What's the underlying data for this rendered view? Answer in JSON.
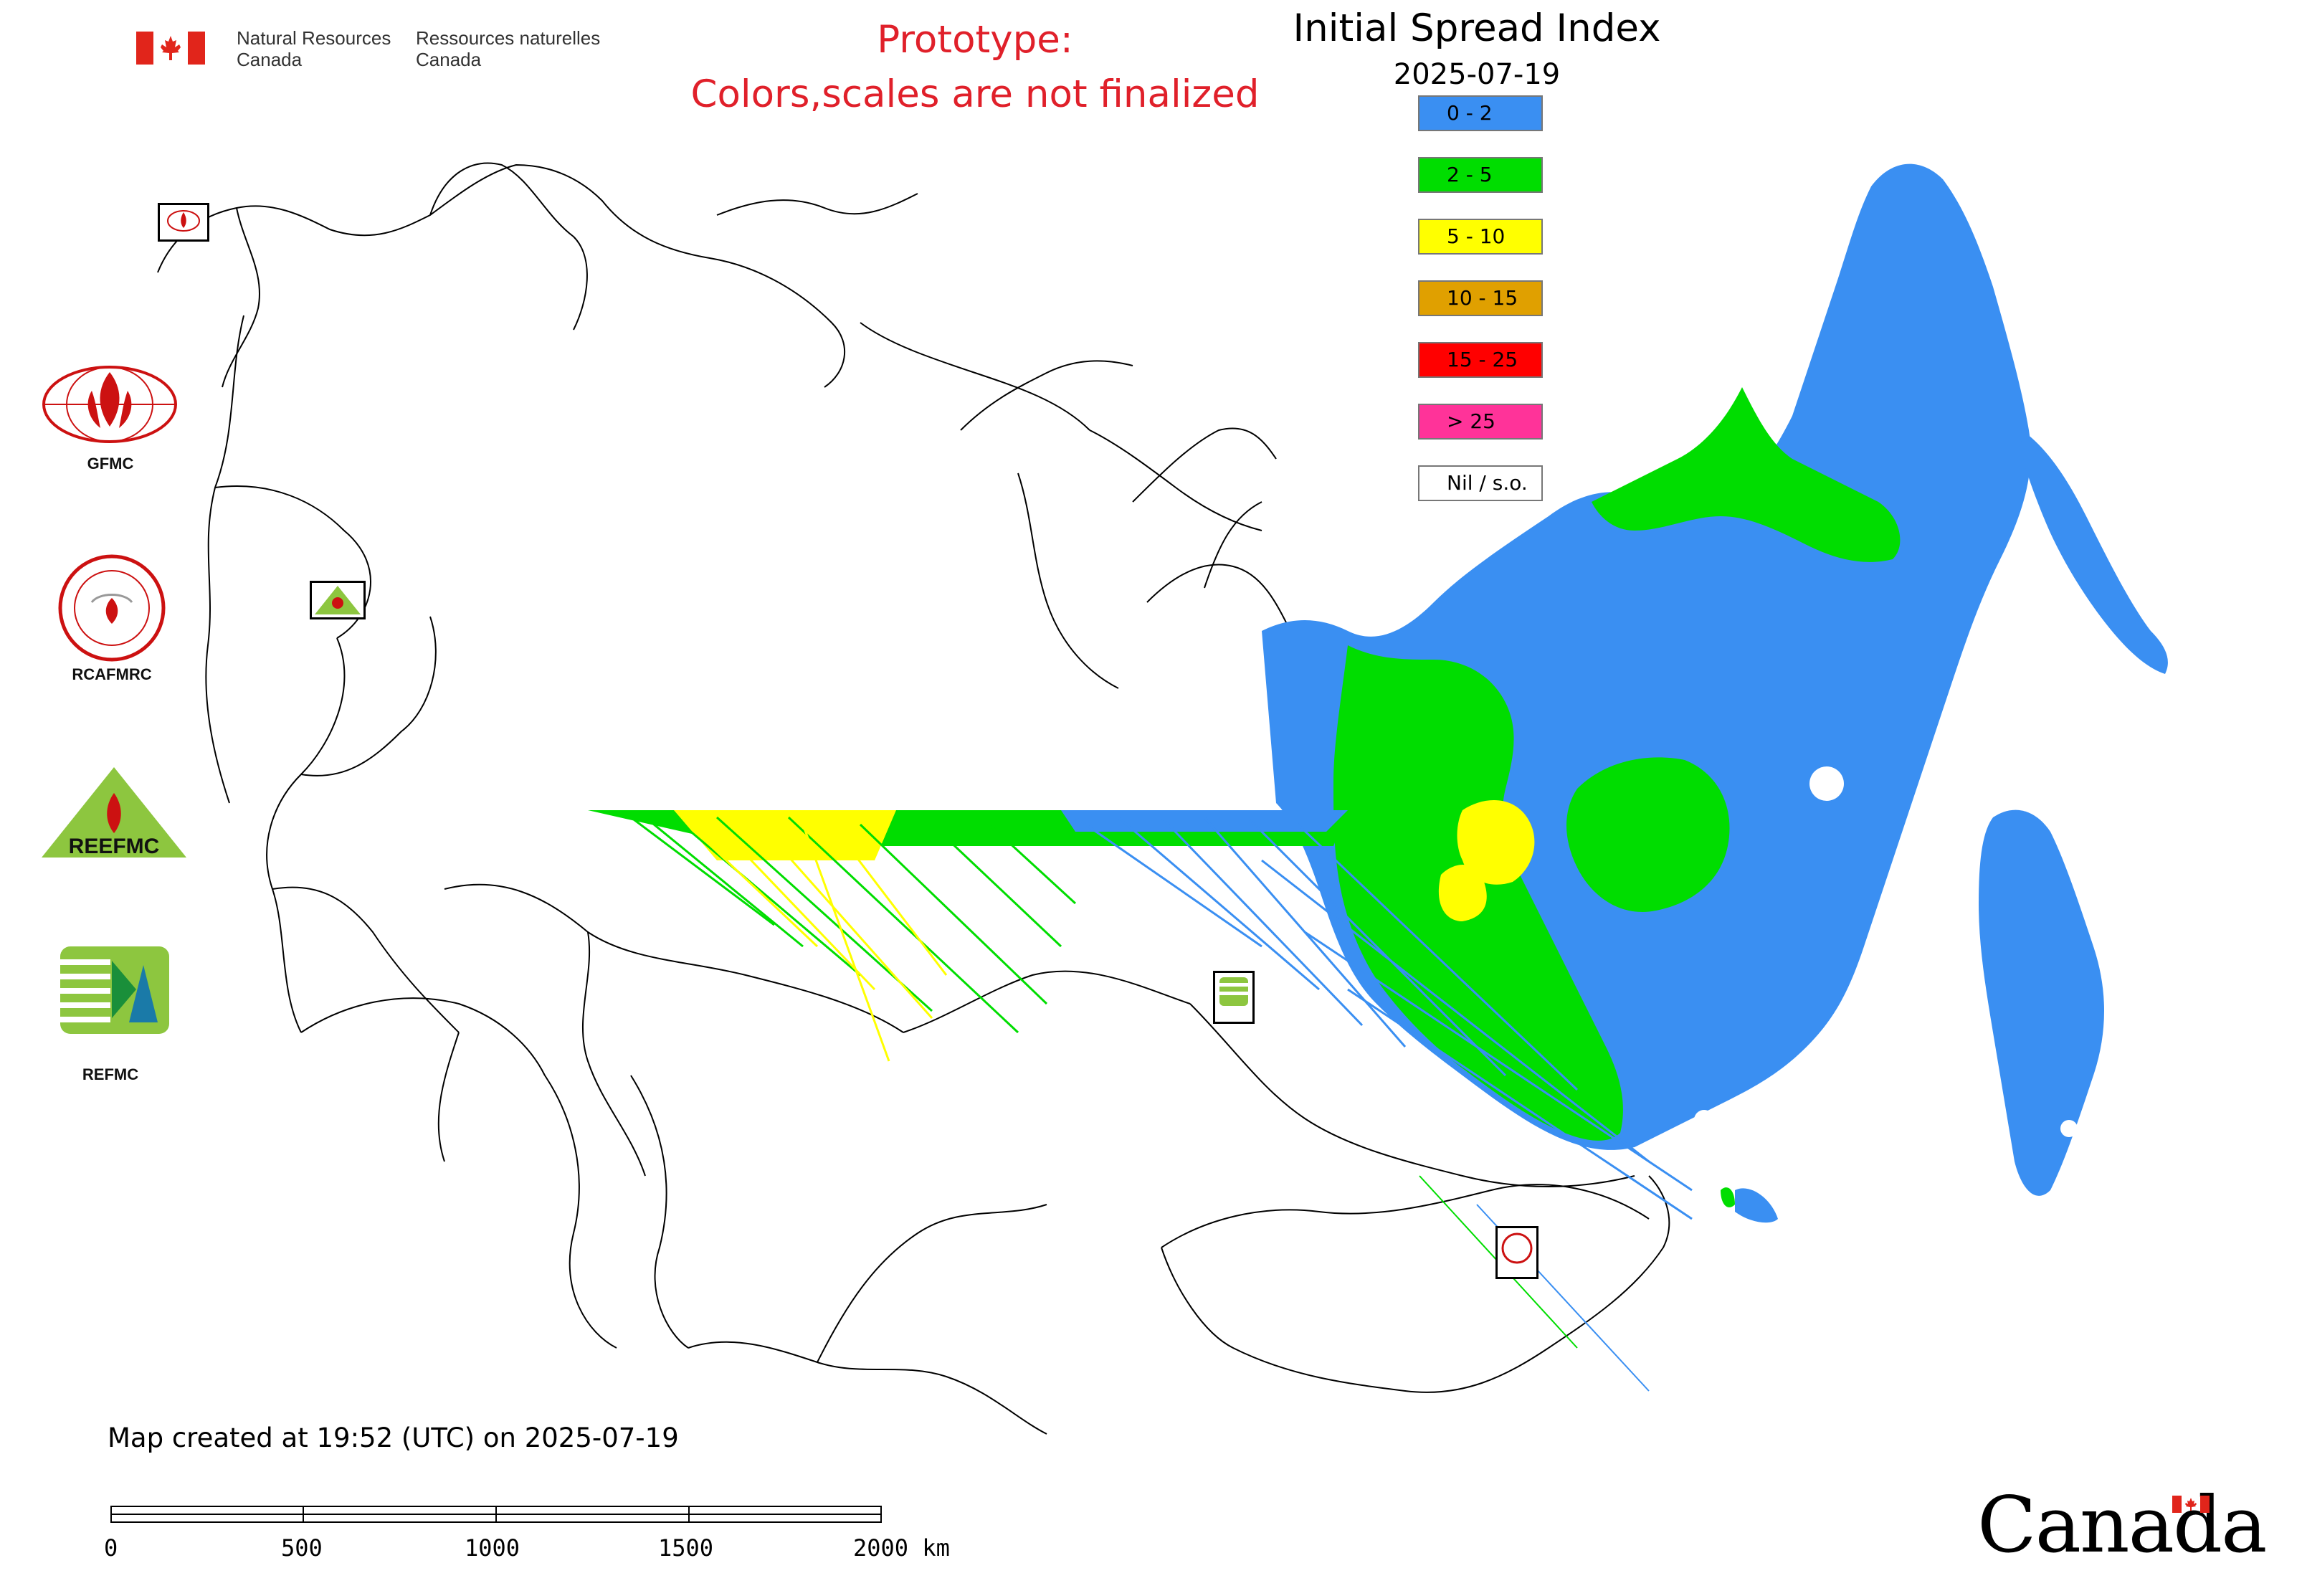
{
  "header": {
    "agency_en": [
      "Natural Resources",
      "Canada"
    ],
    "agency_fr": [
      "Ressources naturelles",
      "Canada"
    ],
    "prototype_notice": [
      "Prototype:",
      "Colors,scales are not finalized"
    ],
    "title": "Initial Spread Index",
    "date": "2025-07-19"
  },
  "legend": {
    "items": [
      {
        "label": "0 - 2",
        "color": "#3a8ff2"
      },
      {
        "label": "2 - 5",
        "color": "#00dd00"
      },
      {
        "label": "5 - 10",
        "color": "#ffff00"
      },
      {
        "label": "10 - 15",
        "color": "#e0a000"
      },
      {
        "label": "15 - 25",
        "color": "#ff0000"
      },
      {
        "label": "> 25",
        "color": "#ff3399"
      },
      {
        "label": "Nil / s.o.",
        "color": "#ffffff"
      }
    ]
  },
  "logos": {
    "gfmc": "GFMC",
    "rcafmrc": "RCAFMRC",
    "reefmc_wordmark": "REEFMC",
    "refmc": "REFMC"
  },
  "map": {
    "colors": {
      "low": "#3a8ff2",
      "moderate": "#00dd00",
      "high": "#ffff00",
      "border": "#000000"
    }
  },
  "footer": {
    "created_note": "Map created at 19:52 (UTC) on 2025-07-19",
    "scale_ticks": [
      "0",
      "500",
      "1000",
      "1500",
      "2000 km"
    ],
    "wordmark": "Canada"
  }
}
